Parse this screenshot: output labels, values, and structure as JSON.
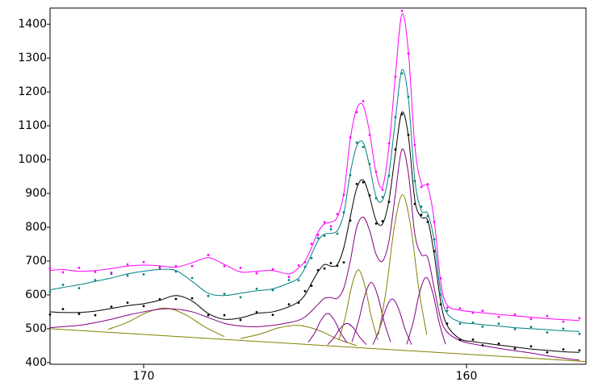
{
  "chart_data": {
    "type": "line",
    "xlim": [
      172.9,
      156.3
    ],
    "ylim": [
      395,
      1448
    ],
    "xticks": [
      170,
      160
    ],
    "yticks": [
      400,
      500,
      600,
      700,
      800,
      900,
      1000,
      1100,
      1200,
      1300,
      1400
    ],
    "x": [
      172.9,
      172.5,
      172,
      171.5,
      171,
      170.5,
      170,
      169.5,
      169,
      168.5,
      168,
      167.5,
      167,
      166.5,
      166,
      165.5,
      165.2,
      165.0,
      164.8,
      164.6,
      164.4,
      164.2,
      164.0,
      163.8,
      163.6,
      163.4,
      163.2,
      163.0,
      162.8,
      162.6,
      162.4,
      162.2,
      162.0,
      161.8,
      161.6,
      161.4,
      161.2,
      161.0,
      160.8,
      160.6,
      160.2,
      159.8,
      159.5,
      159,
      158.5,
      158,
      157.5,
      157,
      156.5
    ],
    "series": [
      {
        "type": "line",
        "color": "#808000",
        "x": [
          172.9,
          156.3
        ],
        "values": [
          500,
          403
        ]
      },
      {
        "type": "line",
        "color": "#808000",
        "x": [
          171.1,
          170.5,
          169.9,
          169.3,
          168.7,
          168.1,
          167.5
        ],
        "values": [
          498,
          519,
          548,
          561,
          541,
          505,
          477
        ]
      },
      {
        "type": "line",
        "color": "#808000",
        "x": [
          167,
          166.4,
          165.8,
          165.2,
          164.6,
          164,
          163.4
        ],
        "values": [
          471,
          484,
          503,
          510,
          496,
          470,
          450
        ]
      },
      {
        "type": "line",
        "color": "#800080",
        "x": [
          164.9,
          164.7,
          164.5,
          164.3,
          164.1,
          163.9,
          163.7
        ],
        "values": [
          460,
          488,
          526,
          545,
          526,
          488,
          459
        ]
      },
      {
        "type": "line",
        "color": "#800080",
        "x": [
          164.3,
          164.1,
          163.9,
          163.7,
          163.5,
          163.3,
          163.1
        ],
        "values": [
          453,
          474,
          502,
          516,
          502,
          474,
          453
        ]
      },
      {
        "type": "line",
        "color": "#808000",
        "x": [
          163.95,
          163.75,
          163.55,
          163.35,
          163.15,
          162.95,
          162.75
        ],
        "values": [
          467,
          536,
          628,
          674,
          628,
          536,
          467
        ]
      },
      {
        "type": "line",
        "color": "#800080",
        "x": [
          163.55,
          163.35,
          163.15,
          162.95,
          162.75,
          162.55,
          162.35
        ],
        "values": [
          461,
          520,
          598,
          637,
          598,
          520,
          461
        ]
      },
      {
        "type": "line",
        "color": "#800080",
        "x": [
          162.9,
          162.7,
          162.5,
          162.3,
          162.1,
          161.9,
          161.7
        ],
        "values": [
          453,
          498,
          558,
          588,
          558,
          498,
          453
        ]
      },
      {
        "type": "line",
        "color": "#808000",
        "x": [
          162.73,
          162.48,
          162.23,
          161.98,
          161.73,
          161.48,
          161.23
        ],
        "values": [
          482,
          620,
          804,
          896,
          804,
          620,
          482
        ]
      },
      {
        "type": "line",
        "color": "#800080",
        "x": [
          161.85,
          161.65,
          161.45,
          161.25,
          161.05,
          160.85,
          160.65
        ],
        "values": [
          454,
          520,
          608,
          652,
          608,
          520,
          454
        ]
      },
      {
        "type": "line",
        "color": "#800080",
        "values": [
          503,
          506,
          510,
          518,
          528,
          540,
          550,
          558,
          558,
          550,
          533,
          516,
          508,
          506,
          510,
          518,
          525,
          535,
          552,
          572,
          590,
          592,
          590,
          620,
          700,
          800,
          830,
          790,
          720,
          700,
          760,
          900,
          1030,
          960,
          780,
          720,
          710,
          620,
          530,
          490,
          465,
          455,
          450,
          442,
          435,
          428,
          420,
          413,
          407
        ]
      },
      {
        "type": "line",
        "color": "#000000",
        "values": [
          550,
          548,
          548,
          552,
          560,
          568,
          574,
          584,
          598,
          582,
          545,
          528,
          532,
          545,
          550,
          565,
          580,
          600,
          635,
          668,
          690,
          685,
          690,
          740,
          830,
          915,
          940,
          890,
          820,
          810,
          880,
          1020,
          1140,
          1070,
          880,
          830,
          820,
          720,
          580,
          510,
          470,
          462,
          458,
          452,
          446,
          440,
          436,
          432,
          430
        ]
      },
      {
        "type": "line",
        "color": "#008080",
        "values": [
          615,
          622,
          630,
          640,
          650,
          662,
          670,
          675,
          672,
          640,
          605,
          598,
          605,
          612,
          618,
          635,
          650,
          680,
          720,
          760,
          780,
          782,
          790,
          840,
          960,
          1040,
          1050,
          980,
          890,
          880,
          960,
          1120,
          1265,
          1180,
          940,
          850,
          840,
          760,
          610,
          545,
          520,
          515,
          512,
          508,
          503,
          500,
          497,
          494,
          492
        ]
      },
      {
        "type": "line",
        "color": "#ff00ff",
        "values": [
          672,
          675,
          670,
          672,
          678,
          685,
          688,
          686,
          682,
          695,
          710,
          690,
          668,
          670,
          672,
          662,
          680,
          700,
          740,
          785,
          810,
          815,
          830,
          900,
          1060,
          1150,
          1160,
          1080,
          960,
          920,
          1040,
          1250,
          1430,
          1320,
          1040,
          930,
          920,
          820,
          640,
          570,
          555,
          550,
          547,
          542,
          538,
          534,
          530,
          527,
          524
        ]
      },
      {
        "type": "scatter",
        "color": "#000000",
        "values": [
          542,
          558,
          544,
          540,
          565,
          577,
          567,
          587,
          588,
          590,
          540,
          540,
          526,
          549,
          541,
          572,
          577,
          611,
          627,
          673,
          678,
          694,
          686,
          696,
          820,
          928,
          933,
          894,
          811,
          818,
          875,
          1030,
          1134,
          1073,
          869,
          837,
          816,
          729,
          572,
          515,
          467,
          468,
          451,
          456,
          441,
          448,
          430,
          439,
          436
        ]
      },
      {
        "type": "scatter",
        "color": "#008080",
        "values": [
          609,
          630,
          620,
          644,
          662,
          657,
          661,
          682,
          669,
          650,
          597,
          603,
          593,
          618,
          614,
          644,
          643,
          683,
          709,
          768,
          775,
          794,
          781,
          844,
          954,
          1050,
          1037,
          987,
          886,
          889,
          952,
          1125,
          1255,
          1186,
          937,
          861,
          833,
          764,
          601,
          553,
          515,
          518,
          506,
          515,
          499,
          505,
          489,
          500,
          485
        ]
      },
      {
        "type": "scatter",
        "color": "#ff00ff",
        "values": [
          678,
          667,
          680,
          668,
          666,
          690,
          697,
          679,
          685,
          685,
          718,
          685,
          680,
          664,
          676,
          653,
          687,
          697,
          751,
          777,
          815,
          803,
          839,
          896,
          1066,
          1140,
          1173,
          1073,
          964,
          911,
          1048,
          1245,
          1440,
          1314,
          1043,
          919,
          927,
          816,
          649,
          562,
          560,
          547,
          553,
          535,
          542,
          529,
          538,
          521,
          531
        ]
      }
    ]
  }
}
